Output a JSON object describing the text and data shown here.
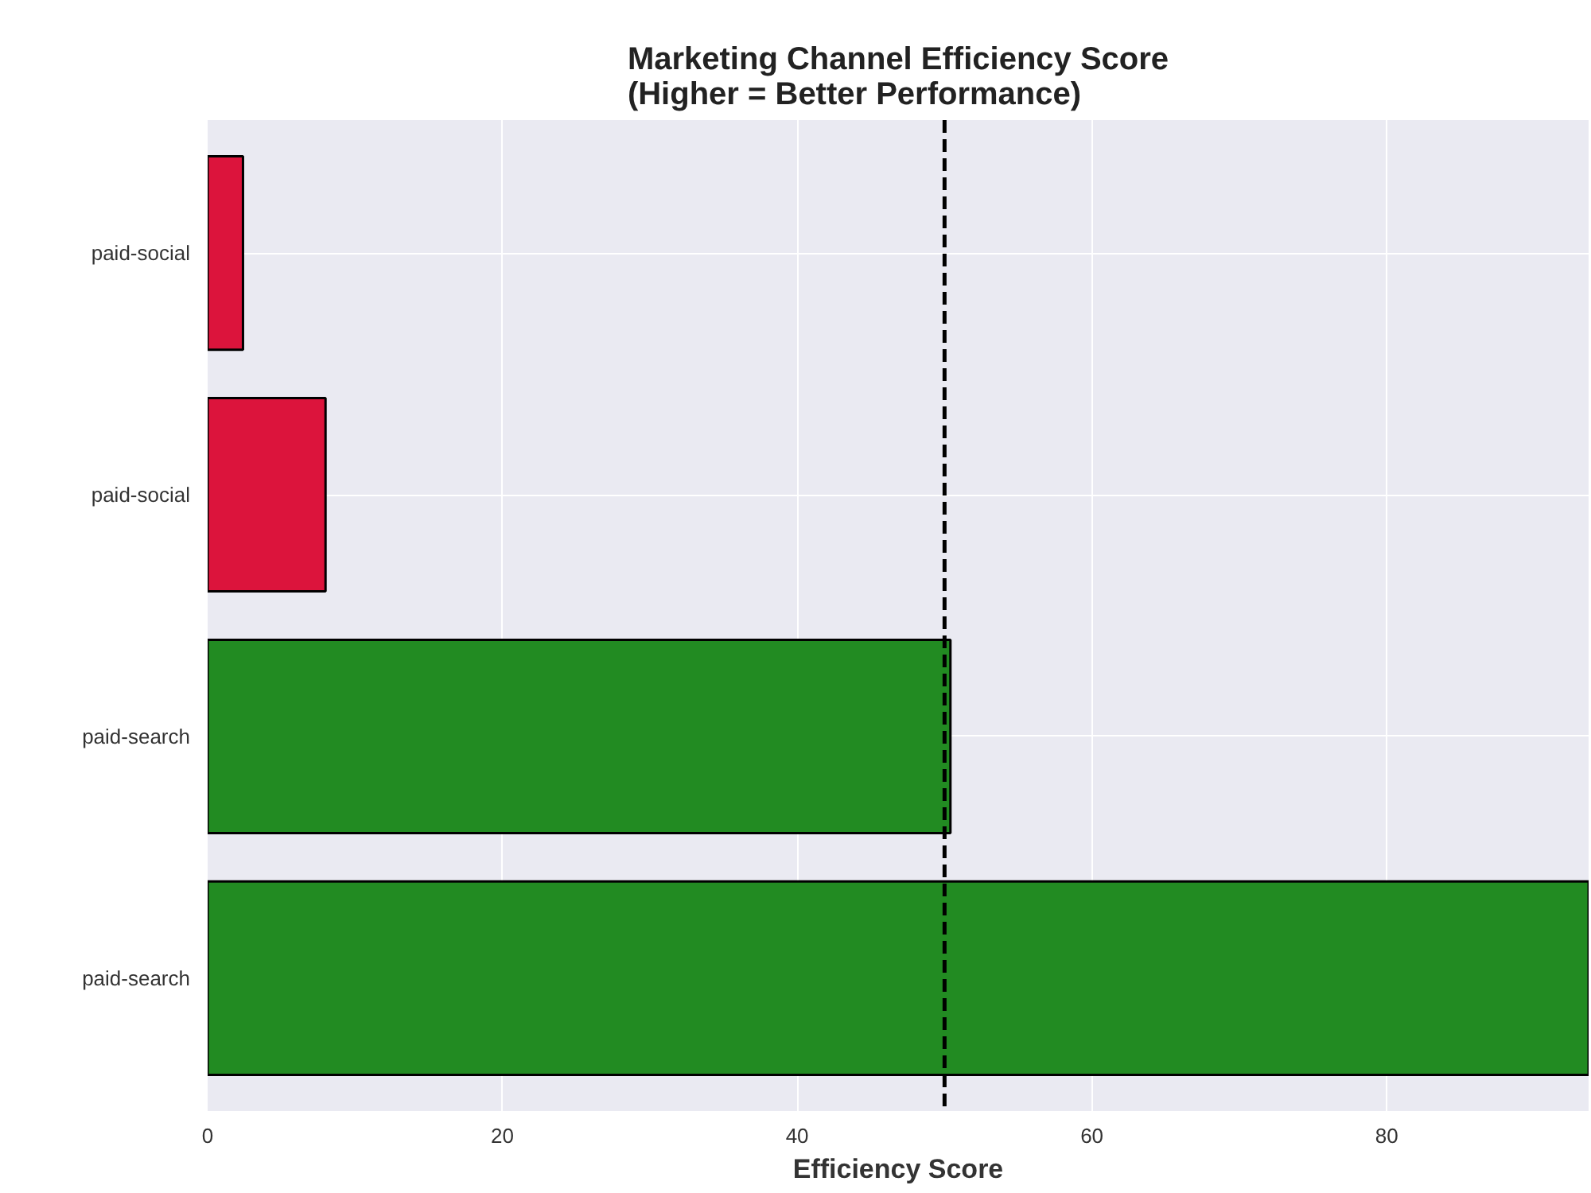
{
  "chart_data": {
    "type": "bar",
    "orientation": "horizontal",
    "title": "Marketing Channel Efficiency Score\n(Higher = Better Performance)",
    "xlabel": "Efficiency Score",
    "categories": [
      "paid-social",
      "paid-social",
      "paid-search",
      "paid-search"
    ],
    "values": [
      2.4,
      8.0,
      50.4,
      93.7
    ],
    "colors": [
      "#dc143c",
      "#dc143c",
      "#228b22",
      "#228b22"
    ],
    "xlim": [
      0,
      93.7
    ],
    "xticks": [
      0,
      20,
      40,
      60,
      80
    ],
    "grid": true,
    "ref_lines": [
      {
        "axis": "x",
        "value": 50,
        "color": "#000000",
        "line_style": "dashed"
      }
    ]
  }
}
